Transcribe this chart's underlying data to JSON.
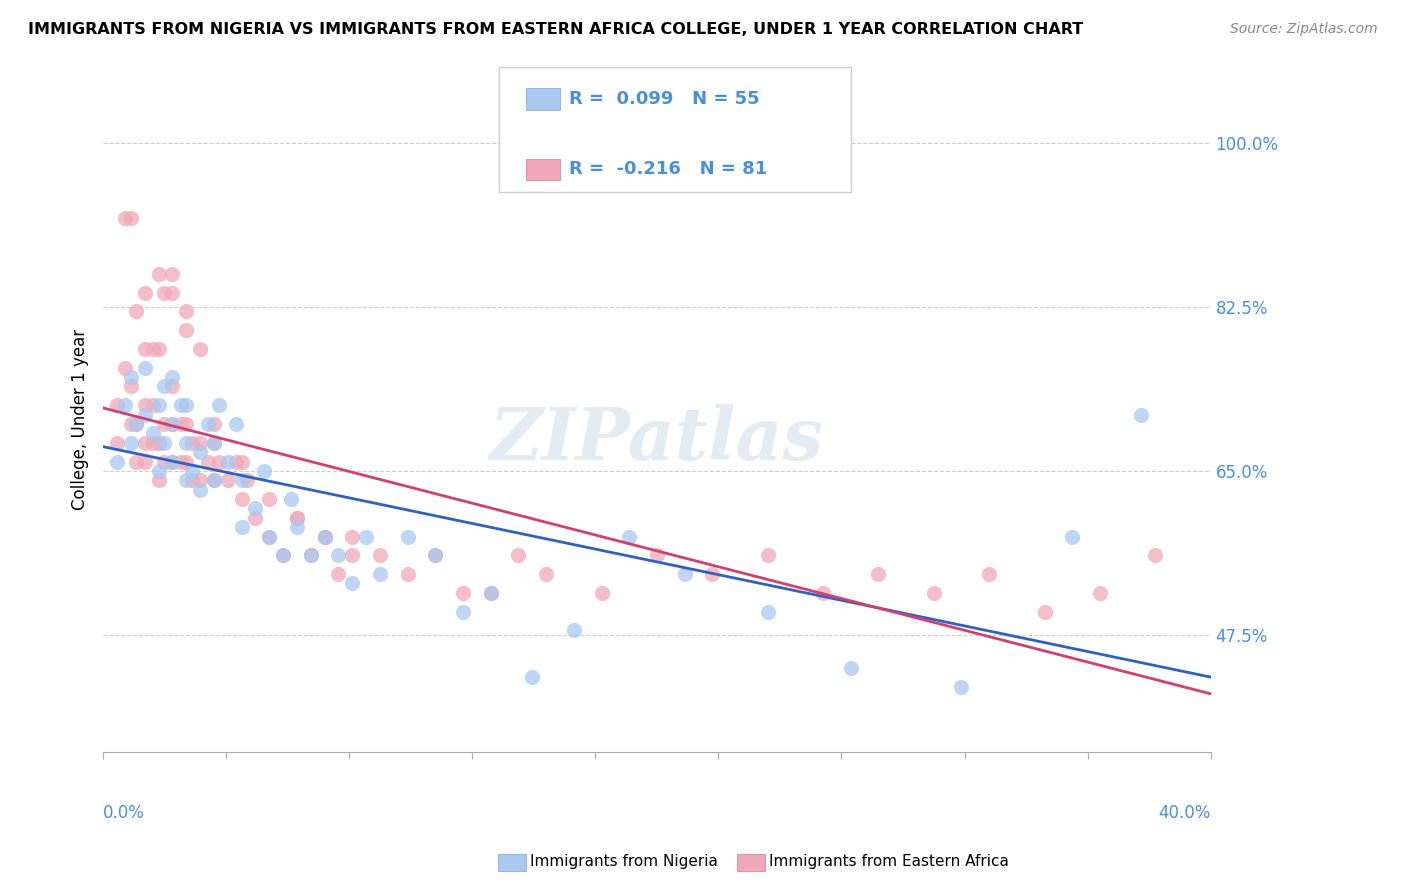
{
  "title": "IMMIGRANTS FROM NIGERIA VS IMMIGRANTS FROM EASTERN AFRICA COLLEGE, UNDER 1 YEAR CORRELATION CHART",
  "source": "Source: ZipAtlas.com",
  "ylabel": "College, Under 1 year",
  "ytick_vals": [
    0.475,
    0.65,
    0.825,
    1.0
  ],
  "ytick_labels": [
    "47.5%",
    "65.0%",
    "82.5%",
    "100.0%"
  ],
  "xmin": 0.0,
  "xmax": 0.4,
  "ymin": 0.35,
  "ymax": 1.06,
  "legend_R1": "0.099",
  "legend_N1": "55",
  "legend_R2": "-0.216",
  "legend_N2": "81",
  "color_nigeria": "#a8c8f0",
  "color_eastern": "#f0a8b8",
  "color_nigeria_line": "#3060c0",
  "color_eastern_line": "#d04070",
  "color_axis_label": "#4a90d9",
  "watermark": "ZIPatlas",
  "nigeria_x": [
    0.005,
    0.008,
    0.01,
    0.01,
    0.012,
    0.015,
    0.015,
    0.018,
    0.02,
    0.02,
    0.022,
    0.022,
    0.025,
    0.025,
    0.025,
    0.028,
    0.03,
    0.03,
    0.03,
    0.032,
    0.035,
    0.035,
    0.038,
    0.04,
    0.04,
    0.042,
    0.045,
    0.048,
    0.05,
    0.05,
    0.055,
    0.058,
    0.06,
    0.065,
    0.068,
    0.07,
    0.075,
    0.08,
    0.085,
    0.09,
    0.095,
    0.1,
    0.11,
    0.12,
    0.13,
    0.14,
    0.155,
    0.17,
    0.19,
    0.21,
    0.24,
    0.27,
    0.31,
    0.35,
    0.375
  ],
  "nigeria_y": [
    0.66,
    0.72,
    0.68,
    0.75,
    0.7,
    0.71,
    0.76,
    0.69,
    0.65,
    0.72,
    0.68,
    0.74,
    0.66,
    0.7,
    0.75,
    0.72,
    0.64,
    0.68,
    0.72,
    0.65,
    0.63,
    0.67,
    0.7,
    0.64,
    0.68,
    0.72,
    0.66,
    0.7,
    0.59,
    0.64,
    0.61,
    0.65,
    0.58,
    0.56,
    0.62,
    0.59,
    0.56,
    0.58,
    0.56,
    0.53,
    0.58,
    0.54,
    0.58,
    0.56,
    0.5,
    0.52,
    0.43,
    0.48,
    0.58,
    0.54,
    0.5,
    0.44,
    0.42,
    0.58,
    0.71
  ],
  "eastern_x": [
    0.005,
    0.005,
    0.008,
    0.01,
    0.01,
    0.012,
    0.012,
    0.015,
    0.015,
    0.015,
    0.018,
    0.018,
    0.02,
    0.02,
    0.022,
    0.022,
    0.025,
    0.025,
    0.025,
    0.028,
    0.028,
    0.03,
    0.03,
    0.032,
    0.032,
    0.035,
    0.035,
    0.038,
    0.04,
    0.04,
    0.042,
    0.045,
    0.048,
    0.05,
    0.052,
    0.055,
    0.06,
    0.065,
    0.07,
    0.075,
    0.08,
    0.085,
    0.09,
    0.1,
    0.11,
    0.12,
    0.13,
    0.14,
    0.15,
    0.16,
    0.18,
    0.2,
    0.22,
    0.24,
    0.26,
    0.28,
    0.3,
    0.32,
    0.34,
    0.36,
    0.38,
    0.015,
    0.02,
    0.025,
    0.01,
    0.03,
    0.035,
    0.02,
    0.025,
    0.015,
    0.012,
    0.018,
    0.008,
    0.022,
    0.03,
    0.04,
    0.05,
    0.06,
    0.07,
    0.08,
    0.09
  ],
  "eastern_y": [
    0.68,
    0.72,
    0.76,
    0.7,
    0.74,
    0.66,
    0.7,
    0.66,
    0.68,
    0.72,
    0.68,
    0.72,
    0.64,
    0.68,
    0.66,
    0.7,
    0.66,
    0.7,
    0.74,
    0.66,
    0.7,
    0.66,
    0.7,
    0.64,
    0.68,
    0.64,
    0.68,
    0.66,
    0.64,
    0.68,
    0.66,
    0.64,
    0.66,
    0.62,
    0.64,
    0.6,
    0.58,
    0.56,
    0.6,
    0.56,
    0.58,
    0.54,
    0.58,
    0.56,
    0.54,
    0.56,
    0.52,
    0.52,
    0.56,
    0.54,
    0.52,
    0.56,
    0.54,
    0.56,
    0.52,
    0.54,
    0.52,
    0.54,
    0.5,
    0.52,
    0.56,
    0.84,
    0.78,
    0.86,
    0.92,
    0.82,
    0.78,
    0.86,
    0.84,
    0.78,
    0.82,
    0.78,
    0.92,
    0.84,
    0.8,
    0.7,
    0.66,
    0.62,
    0.6,
    0.58,
    0.56
  ]
}
